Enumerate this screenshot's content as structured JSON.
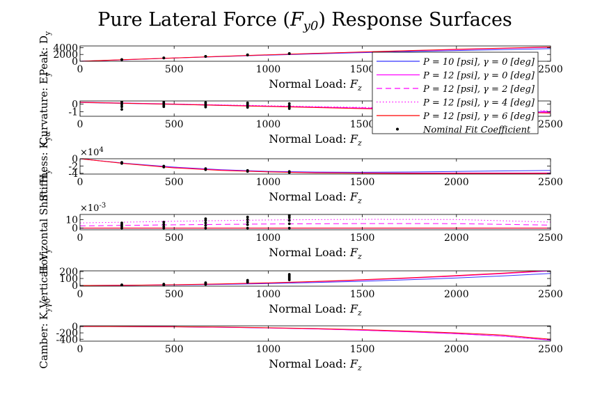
{
  "title": "Pure Lateral Force (F_y0) Response Surfaces",
  "title_parts": {
    "main": "Pure Lateral Force (",
    "var": "F",
    "sub": "y0",
    "end": ") Response Surfaces"
  },
  "shared_xlabel": "Normal Load: F_z",
  "shared_xlabel_parts": {
    "text": "Normal Load: ",
    "var": "F",
    "sub": "z"
  },
  "colors": {
    "blue": "#3333ff",
    "magenta": "#ff00ff",
    "red": "#ff0000",
    "black": "#000000"
  },
  "legend": {
    "entries": [
      {
        "label": "P = 10 [psi], γ = 0 [deg]",
        "color": "#3333ff",
        "style": "solid"
      },
      {
        "label": "P = 12 [psi], γ = 0 [deg]",
        "color": "#ff00ff",
        "style": "solid"
      },
      {
        "label": "P = 12 [psi], γ = 2 [deg]",
        "color": "#ff00ff",
        "style": "dashed"
      },
      {
        "label": "P = 12 [psi], γ = 4 [deg]",
        "color": "#ff00ff",
        "style": "dotted"
      },
      {
        "label": "P = 12 [psi], γ = 6 [deg]",
        "color": "#ff0000",
        "style": "solid"
      },
      {
        "label": "Nominal Fit Coefficient",
        "color": "#000000",
        "style": "marker"
      }
    ],
    "placement": "overlapping top-right of subplots 1-2"
  },
  "chart_data": [
    {
      "type": "line",
      "ylabel": "Peak: D_y",
      "xlabel": "Normal Load: F_z",
      "xlim": [
        0,
        2500
      ],
      "ylim": [
        0,
        4500
      ],
      "xticks": [
        0,
        500,
        1000,
        1500,
        2000,
        2500
      ],
      "yticks": [
        0,
        2000,
        4000
      ],
      "ytick_labels": [
        "0",
        "2000",
        "4000"
      ],
      "exponent": "",
      "x": [
        0,
        250,
        500,
        750,
        1000,
        1250,
        1500,
        1750,
        2000,
        2250,
        2500
      ],
      "series": [
        {
          "color": "blue",
          "style": "solid",
          "values": [
            0,
            480,
            940,
            1380,
            1790,
            2170,
            2530,
            2860,
            3160,
            3440,
            3700
          ]
        },
        {
          "color": "magenta",
          "style": "solid",
          "values": [
            0,
            500,
            980,
            1440,
            1880,
            2300,
            2700,
            3080,
            3440,
            3780,
            4100
          ]
        },
        {
          "color": "red",
          "style": "solid",
          "values": [
            0,
            505,
            990,
            1460,
            1910,
            2340,
            2750,
            3140,
            3510,
            3860,
            4190
          ]
        }
      ],
      "scatter": [
        {
          "x": 222,
          "values": [
            480,
            500,
            520
          ]
        },
        {
          "x": 445,
          "values": [
            950,
            980,
            1000
          ]
        },
        {
          "x": 667,
          "values": [
            1400,
            1430,
            1460
          ]
        },
        {
          "x": 890,
          "values": [
            1820,
            1860,
            1900
          ]
        },
        {
          "x": 1112,
          "values": [
            2220,
            2260,
            2300
          ]
        }
      ]
    },
    {
      "type": "line",
      "ylabel": "Curvature: E_y",
      "xlabel": "Normal Load: F_z",
      "xlim": [
        0,
        2500
      ],
      "ylim": [
        -1.6,
        0.4
      ],
      "xticks": [
        0,
        500,
        1000,
        1500,
        2000,
        2500
      ],
      "yticks": [
        -1,
        0
      ],
      "ytick_labels": [
        "-1",
        "0"
      ],
      "exponent": "",
      "x": [
        0,
        500,
        1000,
        1500,
        2000,
        2500
      ],
      "series": [
        {
          "color": "blue",
          "style": "solid",
          "values": [
            0.2,
            -0.05,
            -0.3,
            -0.55,
            -0.8,
            -1.05
          ]
        },
        {
          "color": "magenta",
          "style": "solid",
          "values": [
            0.25,
            0,
            -0.28,
            -0.55,
            -0.82,
            -1.1
          ]
        },
        {
          "color": "magenta",
          "style": "dashed",
          "values": [
            0.22,
            -0.02,
            -0.26,
            -0.5,
            -0.74,
            -0.98
          ]
        },
        {
          "color": "magenta",
          "style": "dotted",
          "values": [
            0.2,
            -0.01,
            -0.22,
            -0.44,
            -0.66,
            -0.88
          ]
        },
        {
          "color": "red",
          "style": "solid",
          "values": [
            0.22,
            -0.04,
            -0.32,
            -0.6,
            -0.88,
            -1.18
          ]
        }
      ],
      "scatter": [
        {
          "x": 222,
          "values": [
            0.3,
            0.1,
            -0.1,
            -0.35,
            -0.7
          ]
        },
        {
          "x": 445,
          "values": [
            0.25,
            0.05,
            -0.15,
            -0.35
          ]
        },
        {
          "x": 667,
          "values": [
            0.2,
            0,
            -0.2,
            -0.4
          ]
        },
        {
          "x": 890,
          "values": [
            0.15,
            -0.05,
            -0.25,
            -0.45
          ]
        },
        {
          "x": 1112,
          "values": [
            0.05,
            -0.2,
            -0.4,
            -0.6
          ]
        }
      ]
    },
    {
      "type": "line",
      "ylabel": "Stiffness: K_yα",
      "xlabel": "Normal Load: F_z",
      "xlim": [
        0,
        2500
      ],
      "ylim": [
        -4.2,
        0
      ],
      "xticks": [
        0,
        500,
        1000,
        1500,
        2000,
        2500
      ],
      "yticks": [
        -4,
        -2,
        0
      ],
      "ytick_labels": [
        "-4",
        "-2",
        "0"
      ],
      "exponent": "×10^4",
      "x": [
        0,
        250,
        500,
        750,
        1000,
        1250,
        1500,
        1750,
        2000,
        2250,
        2500
      ],
      "series": [
        {
          "color": "blue",
          "style": "solid",
          "values": [
            0,
            -1.3,
            -2.3,
            -3.0,
            -3.45,
            -3.65,
            -3.7,
            -3.62,
            -3.5,
            -3.35,
            -3.2
          ]
        },
        {
          "color": "magenta",
          "style": "solid",
          "values": [
            0,
            -1.35,
            -2.4,
            -3.1,
            -3.55,
            -3.8,
            -3.9,
            -3.92,
            -3.92,
            -3.91,
            -3.9
          ]
        },
        {
          "color": "red",
          "style": "solid",
          "values": [
            0,
            -1.4,
            -2.5,
            -3.2,
            -3.6,
            -3.85,
            -3.95,
            -4.0,
            -4.0,
            -4.0,
            -4.0
          ]
        }
      ],
      "scatter": [
        {
          "x": 222,
          "values": [
            -1.0,
            -1.3
          ]
        },
        {
          "x": 445,
          "values": [
            -2.0,
            -2.3
          ]
        },
        {
          "x": 667,
          "values": [
            -2.7,
            -3.0
          ]
        },
        {
          "x": 890,
          "values": [
            -3.2,
            -3.5
          ]
        },
        {
          "x": 1112,
          "values": [
            -3.5,
            -3.8
          ]
        }
      ]
    },
    {
      "type": "line",
      "ylabel": "Horizontal Shift: H_y",
      "xlabel": "Normal Load: F_z",
      "xlim": [
        0,
        2500
      ],
      "ylim": [
        -2,
        16
      ],
      "xticks": [
        0,
        500,
        1000,
        1500,
        2000,
        2500
      ],
      "yticks": [
        0,
        10
      ],
      "ytick_labels": [
        "0",
        "10"
      ],
      "exponent": "×10^-3",
      "x": [
        0,
        500,
        1000,
        1500,
        2000,
        2500
      ],
      "series": [
        {
          "color": "blue",
          "style": "solid",
          "values": [
            0,
            0,
            0,
            0,
            0,
            0
          ]
        },
        {
          "color": "magenta",
          "style": "solid",
          "values": [
            0,
            0,
            0,
            0,
            0,
            0
          ]
        },
        {
          "color": "magenta",
          "style": "dashed",
          "values": [
            2.5,
            3.8,
            4.8,
            5.3,
            5.2,
            3.5
          ]
        },
        {
          "color": "magenta",
          "style": "dotted",
          "values": [
            6.0,
            8.0,
            9.5,
            10.3,
            10.0,
            7.0
          ]
        },
        {
          "color": "red",
          "style": "solid",
          "values": [
            0,
            0,
            0,
            0,
            0,
            0
          ]
        }
      ],
      "scatter": [
        {
          "x": 222,
          "values": [
            0,
            2,
            4,
            6
          ]
        },
        {
          "x": 445,
          "values": [
            0,
            2,
            4.5,
            7
          ]
        },
        {
          "x": 667,
          "values": [
            0,
            3,
            6,
            9,
            11
          ]
        },
        {
          "x": 890,
          "values": [
            0,
            4,
            7,
            10,
            13
          ]
        },
        {
          "x": 1112,
          "values": [
            0,
            5,
            9,
            12,
            14,
            15
          ]
        }
      ]
    },
    {
      "type": "line",
      "ylabel": "Vertical: V_y",
      "xlabel": "Normal Load: F_z",
      "xlim": [
        0,
        2500
      ],
      "ylim": [
        -10,
        210
      ],
      "xticks": [
        0,
        500,
        1000,
        1500,
        2000,
        2500
      ],
      "yticks": [
        0,
        100,
        200
      ],
      "ytick_labels": [
        "0",
        "100",
        "200"
      ],
      "exponent": "",
      "x": [
        0,
        250,
        500,
        750,
        1000,
        1250,
        1500,
        1750,
        2000,
        2250,
        2500
      ],
      "series": [
        {
          "color": "blue",
          "style": "solid",
          "values": [
            0,
            2,
            7,
            15,
            27,
            42,
            60,
            82,
            108,
            138,
            172
          ]
        },
        {
          "color": "magenta",
          "style": "solid",
          "values": [
            0,
            3,
            10,
            20,
            35,
            54,
            77,
            104,
            135,
            170,
            209
          ]
        },
        {
          "color": "red",
          "style": "solid",
          "values": [
            0,
            3,
            11,
            22,
            38,
            58,
            82,
            110,
            142,
            178,
            218
          ]
        }
      ],
      "scatter": [
        {
          "x": 222,
          "values": [
            0,
            5,
            10
          ]
        },
        {
          "x": 445,
          "values": [
            5,
            12,
            20
          ]
        },
        {
          "x": 667,
          "values": [
            15,
            28,
            40
          ]
        },
        {
          "x": 890,
          "values": [
            45,
            60,
            75
          ]
        },
        {
          "x": 1112,
          "values": [
            80,
            100,
            120,
            140,
            160
          ]
        }
      ]
    },
    {
      "type": "line",
      "ylabel": "Camber: K_yγ0",
      "xlabel": "Normal Load: F_z",
      "xlim": [
        0,
        2500
      ],
      "ylim": [
        -460,
        20
      ],
      "xticks": [
        0,
        500,
        1000,
        1500,
        2000,
        2500
      ],
      "yticks": [
        -400,
        -200,
        0
      ],
      "ytick_labels": [
        "-400",
        "-200",
        "0"
      ],
      "exponent": "",
      "x": [
        0,
        250,
        500,
        750,
        1000,
        1250,
        1500,
        1750,
        2000,
        2250,
        2500
      ],
      "series": [
        {
          "color": "blue",
          "style": "solid",
          "values": [
            0,
            -3,
            -10,
            -25,
            -45,
            -75,
            -115,
            -165,
            -225,
            -300,
            -430
          ]
        },
        {
          "color": "magenta",
          "style": "solid",
          "values": [
            0,
            -3,
            -11,
            -26,
            -47,
            -77,
            -117,
            -168,
            -228,
            -303,
            -425
          ]
        },
        {
          "color": "red",
          "style": "solid",
          "values": [
            0,
            -2,
            -8,
            -20,
            -40,
            -65,
            -100,
            -145,
            -200,
            -270,
            -400
          ]
        }
      ],
      "scatter": []
    }
  ]
}
